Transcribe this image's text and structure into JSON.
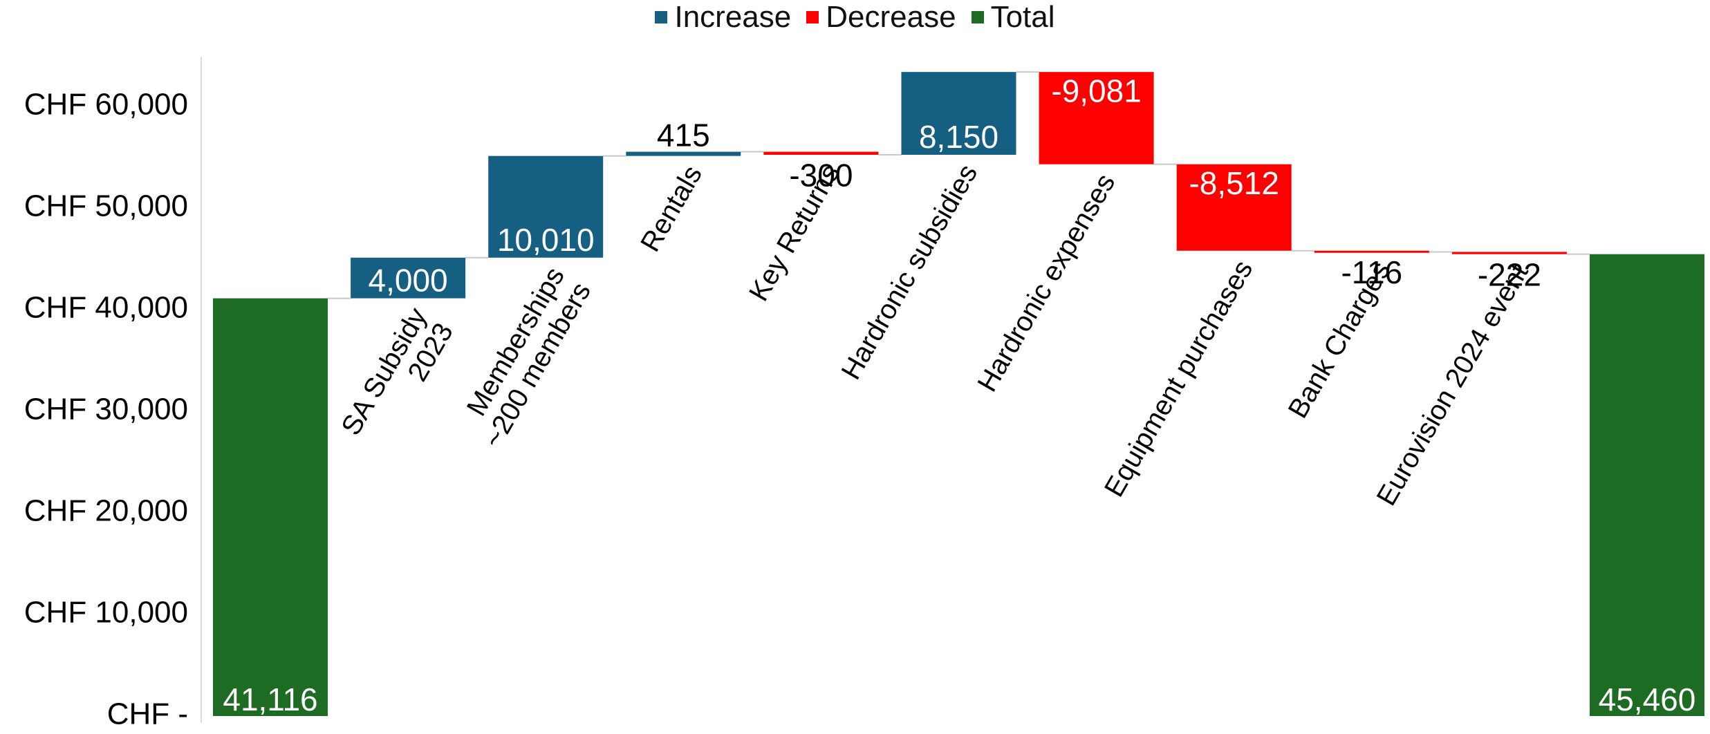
{
  "chart_data": {
    "type": "waterfall",
    "title": "",
    "xlabel": "",
    "ylabel": "",
    "ylim": [
      0,
      63000
    ],
    "y_ticks": [
      0,
      10000,
      20000,
      30000,
      40000,
      50000,
      60000
    ],
    "y_tick_labels": [
      "CHF -",
      "CHF 10,000",
      "CHF 20,000",
      "CHF 30,000",
      "CHF 40,000",
      "CHF 50,000",
      "CHF 60,000"
    ],
    "legend": {
      "placement": "top-center",
      "entries": [
        {
          "name": "Increase",
          "color": "#156082"
        },
        {
          "name": "Decrease",
          "color": "#ff0000"
        },
        {
          "name": "Total",
          "color": "#1e6b24"
        }
      ]
    },
    "grid": false,
    "categories": [
      "",
      "SA Subsidy\n2023",
      "Memberships\n~200 members",
      "Rentals",
      "Key Returns",
      "Hardronic subsidies",
      "Hardronic expenses",
      "Equipment purchases",
      "Bank Charges",
      "Eurovision 2024 event",
      ""
    ],
    "values": [
      41116,
      4000,
      10010,
      415,
      -300,
      8150,
      -9081,
      -8512,
      -116,
      -222,
      45460
    ],
    "kinds": [
      "total",
      "increase",
      "increase",
      "increase",
      "decrease",
      "increase",
      "decrease",
      "decrease",
      "decrease",
      "decrease",
      "total"
    ],
    "data_labels": [
      "41,116",
      "4,000",
      "10,010",
      "415",
      "-300",
      "8,150",
      "-9,081",
      "-8,512",
      "-116",
      "-222",
      "45,460"
    ]
  }
}
